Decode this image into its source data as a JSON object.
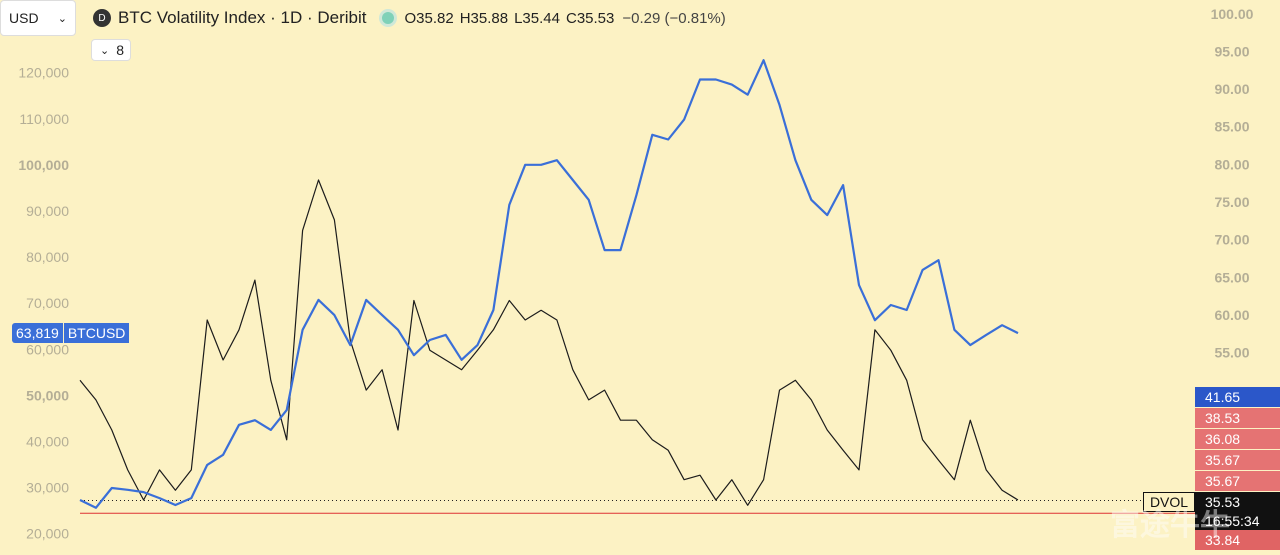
{
  "chart_data": {
    "type": "line",
    "title": "BTC Volatility Index · 1D · Deribit",
    "symbol_icon": "D",
    "currency": "USD",
    "indicator_count": "8",
    "ohlc": [
      {
        "key": "O",
        "value": 35.82
      },
      {
        "key": "H",
        "value": 35.88
      },
      {
        "key": "L",
        "value": 35.44
      },
      {
        "key": "C",
        "value": 35.53
      }
    ],
    "change": "−0.29 (−0.81%)",
    "categories": [
      null,
      null,
      null,
      null,
      null,
      null,
      null,
      null,
      null,
      null,
      null,
      null,
      null,
      null,
      null,
      null,
      null,
      null,
      null,
      null,
      null,
      null,
      null,
      null,
      null,
      null,
      null,
      null,
      null,
      null,
      null,
      null,
      null,
      null,
      null,
      null,
      null,
      null,
      null,
      null,
      null,
      null,
      null,
      null,
      null,
      null,
      null,
      null,
      null,
      null,
      null,
      null,
      null,
      null,
      null,
      null,
      null,
      null,
      null,
      null
    ],
    "series": [
      {
        "name": "BTCUSD",
        "color": "#3a6fd8",
        "values": [
          27600,
          25900,
          30200,
          29800,
          29300,
          28000,
          26500,
          28000,
          35200,
          37400,
          43900,
          44900,
          42800,
          47100,
          64500,
          71000,
          67700,
          61200,
          71000,
          67700,
          64500,
          59000,
          62300,
          63400,
          58000,
          61200,
          68800,
          91600,
          100300,
          100300,
          101300,
          97000,
          92700,
          81800,
          81800,
          93700,
          106800,
          105800,
          110100,
          118800,
          118800,
          117700,
          115500,
          123000,
          113300,
          101300,
          92700,
          89400,
          95900,
          74200,
          66600,
          69900,
          68800,
          77500,
          79600,
          64500,
          61200,
          63400,
          65500,
          63800
        ]
      },
      {
        "name": "DVOL",
        "color": "#1c1c1c",
        "axis": "y2",
        "values": [
          51.5,
          48.9,
          44.9,
          39.6,
          35.6,
          39.6,
          36.9,
          39.6,
          59.5,
          54.2,
          58.2,
          64.8,
          51.5,
          43.6,
          71.4,
          78.1,
          72.8,
          56.8,
          50.2,
          52.9,
          44.9,
          62.1,
          55.5,
          54.2,
          52.9,
          55.5,
          58.2,
          62.1,
          59.5,
          60.8,
          59.5,
          52.9,
          48.9,
          50.2,
          46.2,
          46.2,
          43.6,
          42.2,
          38.3,
          38.9,
          35.6,
          38.3,
          34.9,
          38.3,
          50.2,
          51.5,
          48.9,
          44.9,
          42.2,
          39.6,
          58.2,
          55.5,
          51.5,
          43.6,
          40.9,
          38.3,
          46.2,
          39.6,
          36.9,
          35.6
        ]
      }
    ],
    "ylim": [
      15660,
      136050
    ],
    "yticks": [
      {
        "value": 20000,
        "label": "20,000"
      },
      {
        "value": 30000,
        "label": "30,000"
      },
      {
        "value": 40000,
        "label": "40,000"
      },
      {
        "value": 50000,
        "label": "50,000"
      },
      {
        "value": 60000,
        "label": "60,000"
      },
      {
        "value": 70000,
        "label": "70,000"
      },
      {
        "value": 80000,
        "label": "80,000"
      },
      {
        "value": 90000,
        "label": "90,000"
      },
      {
        "value": 100000,
        "label": "100,000"
      },
      {
        "value": 110000,
        "label": "110,000"
      },
      {
        "value": 120000,
        "label": "120,000"
      }
    ],
    "y2lim": [
      28.3,
      102
    ],
    "y2ticks": [
      {
        "value": 55,
        "label": "55.00"
      },
      {
        "value": 60,
        "label": "60.00"
      },
      {
        "value": 65,
        "label": "65.00"
      },
      {
        "value": 70,
        "label": "70.00"
      },
      {
        "value": 75,
        "label": "75.00"
      },
      {
        "value": 80,
        "label": "80.00"
      },
      {
        "value": 85,
        "label": "85.00"
      },
      {
        "value": 90,
        "label": "90.00"
      },
      {
        "value": 95,
        "label": "95.00"
      },
      {
        "value": 100,
        "label": "100.00"
      }
    ],
    "last_price": {
      "value": 63819,
      "label": "63,819"
    },
    "close": 35.53,
    "countdown": "16:55:34",
    "alert_line": 33.84,
    "price_tags": [
      {
        "value": 41.65,
        "color": "#2b57c9"
      },
      {
        "value": 38.53,
        "color": "#e57373"
      },
      {
        "value": 36.08,
        "color": "#e57373"
      },
      {
        "value": 35.67,
        "color": "#e57373"
      },
      {
        "value": 35.67,
        "color": "#e57373"
      }
    ],
    "watermark": "富途牛牛"
  }
}
